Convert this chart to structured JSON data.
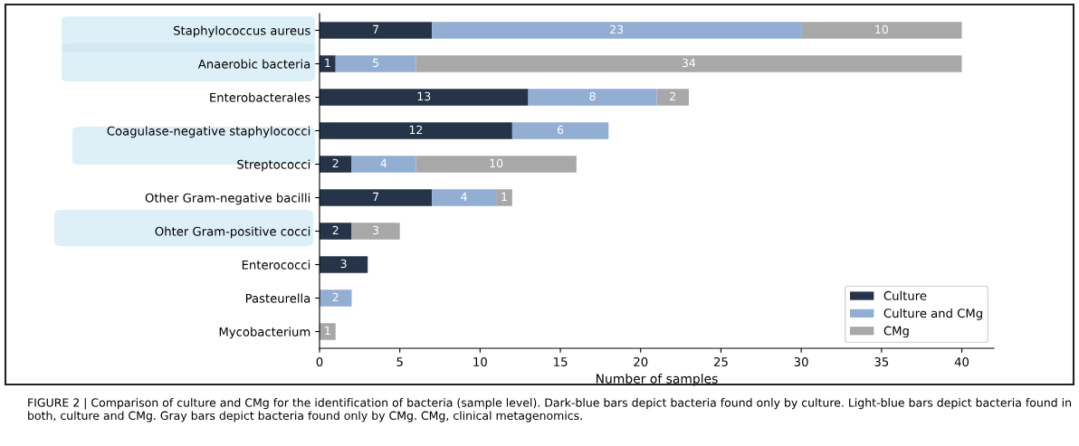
{
  "chart_data": {
    "type": "bar",
    "orientation": "horizontal",
    "stacked": true,
    "data_labels": true,
    "categories": [
      "Staphylococcus aureus",
      "Anaerobic bacteria",
      "Enterobacterales",
      "Coagulase-negative staphylococci",
      "Streptococci",
      "Other Gram-negative bacilli",
      "Ohter Gram-positive cocci",
      "Enterococci",
      "Pasteurella",
      "Mycobacterium"
    ],
    "series": [
      {
        "name": "Culture",
        "color": "#263449",
        "values": [
          7,
          1,
          13,
          12,
          2,
          7,
          2,
          3,
          null,
          null
        ]
      },
      {
        "name": "Culture and CMg",
        "color": "#92aed2",
        "values": [
          23,
          5,
          8,
          6,
          4,
          4,
          null,
          null,
          2,
          null
        ]
      },
      {
        "name": "CMg",
        "color": "#a8a8a8",
        "values": [
          10,
          34,
          2,
          null,
          10,
          1,
          3,
          null,
          null,
          1
        ]
      }
    ],
    "xlabel": "Number of samples",
    "xlim": [
      0,
      42
    ],
    "xticks": [
      0,
      5,
      10,
      15,
      20,
      25,
      30,
      35,
      40
    ],
    "legend": "bottom right",
    "grid": false,
    "annotations": [
      "FIGURE 2 | Comparison of culture and CMg for the identification of bacteria (sample level). Dark-blue bars depict bacteria found only by culture. Light-blue bars depict bacteria found in both, culture and CMg. Gray bars depict bacteria found only by CMg. CMg, clinical metagenomics."
    ]
  }
}
